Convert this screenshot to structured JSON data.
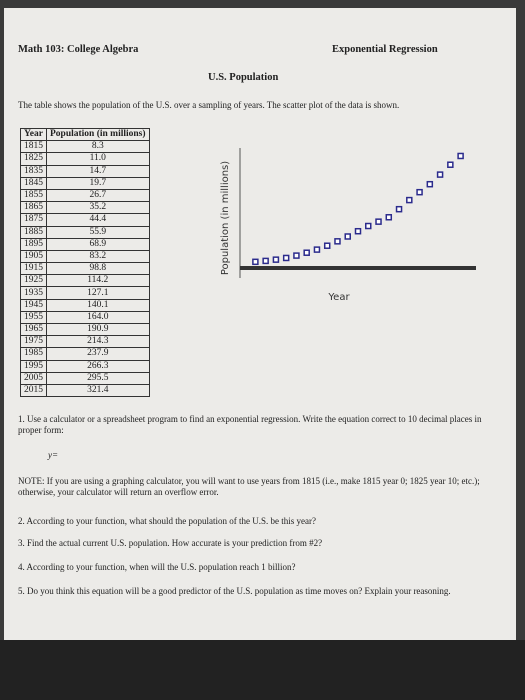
{
  "header": {
    "course": "Math 103: College Algebra",
    "topic": "Exponential Regression"
  },
  "title": "U.S. Population",
  "intro": "The table shows the population of the U.S. over a sampling of years. The scatter plot of the data is shown.",
  "table": {
    "columns": [
      "Year",
      "Population (in millions)"
    ],
    "rows": [
      [
        "1815",
        "8.3"
      ],
      [
        "1825",
        "11.0"
      ],
      [
        "1835",
        "14.7"
      ],
      [
        "1845",
        "19.7"
      ],
      [
        "1855",
        "26.7"
      ],
      [
        "1865",
        "35.2"
      ],
      [
        "1875",
        "44.4"
      ],
      [
        "1885",
        "55.9"
      ],
      [
        "1895",
        "68.9"
      ],
      [
        "1905",
        "83.2"
      ],
      [
        "1915",
        "98.8"
      ],
      [
        "1925",
        "114.2"
      ],
      [
        "1935",
        "127.1"
      ],
      [
        "1945",
        "140.1"
      ],
      [
        "1955",
        "164.0"
      ],
      [
        "1965",
        "190.9"
      ],
      [
        "1975",
        "214.3"
      ],
      [
        "1985",
        "237.9"
      ],
      [
        "1995",
        "266.3"
      ],
      [
        "2005",
        "295.5"
      ],
      [
        "2015",
        "321.4"
      ]
    ]
  },
  "plot": {
    "y_label": "Population (in millions)",
    "x_label": "Year",
    "xlim": [
      1800,
      2030
    ],
    "ylim": [
      -10,
      345
    ]
  },
  "questions": {
    "q1": "1. Use a calculator or a spreadsheet program to find an exponential regression. Write the equation correct to 10 decimal places in proper form:",
    "answer_prefix": "y=",
    "note": "NOTE: If you are using a graphing calculator, you will want to use years from 1815 (i.e., make 1815 year 0; 1825 year 10; etc.); otherwise, your calculator will return an overflow error.",
    "q2": "2. According to your function, what should the population of the U.S. be this year?",
    "q3": "3. Find the actual current U.S. population. How accurate is your prediction from #2?",
    "q4": "4. According to your function, when will the U.S. population reach 1 billion?",
    "q5": "5. Do you think this equation will be a good predictor of the U.S. population as time moves on? Explain your reasoning."
  }
}
